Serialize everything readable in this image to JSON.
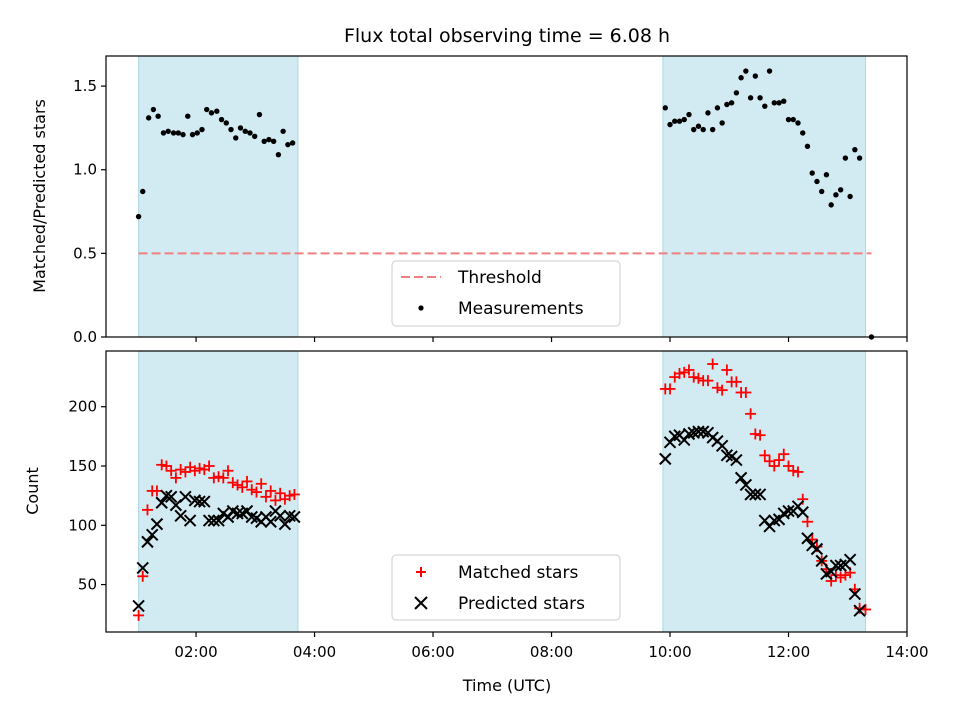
{
  "chart_data": {
    "type": "scatter",
    "title": "Flux total observing time = 6.08 h",
    "xlabel": "Time (UTC)",
    "x_tick_labels": [
      "02:00",
      "04:00",
      "06:00",
      "08:00",
      "10:00",
      "12:00",
      "14:00"
    ],
    "x_ticks_hours": [
      2,
      4,
      6,
      8,
      10,
      12,
      14
    ],
    "xlim_hours": [
      0.48,
      14.0
    ],
    "shaded_intervals_hours": [
      [
        1.03,
        3.72
      ],
      [
        9.88,
        13.3
      ]
    ],
    "colors": {
      "shade": "#add8e6",
      "threshold": "#f08080",
      "measurements": "#000000",
      "matched": "#ff0000",
      "predicted": "#000000"
    },
    "panels": [
      {
        "ylabel": "Matched/Predicted stars",
        "ylim": [
          0,
          1.68
        ],
        "y_ticks": [
          0,
          0.5,
          1.0,
          1.5
        ],
        "y_tick_labels": [
          "0.0",
          "0.5",
          "1.0",
          "1.5"
        ],
        "threshold": {
          "name": "Threshold",
          "value": 0.5,
          "x_range_hours": [
            1.03,
            13.4
          ]
        },
        "series": [
          {
            "name": "Measurements",
            "marker": "dot",
            "points": [
              [
                1.03,
                0.72
              ],
              [
                1.1,
                0.87
              ],
              [
                1.2,
                1.31
              ],
              [
                1.28,
                1.36
              ],
              [
                1.36,
                1.32
              ],
              [
                1.45,
                1.22
              ],
              [
                1.53,
                1.23
              ],
              [
                1.62,
                1.22
              ],
              [
                1.7,
                1.22
              ],
              [
                1.78,
                1.21
              ],
              [
                1.86,
                1.32
              ],
              [
                1.94,
                1.21
              ],
              [
                2.02,
                1.22
              ],
              [
                2.1,
                1.24
              ],
              [
                2.18,
                1.36
              ],
              [
                2.26,
                1.34
              ],
              [
                2.35,
                1.35
              ],
              [
                2.43,
                1.3
              ],
              [
                2.51,
                1.28
              ],
              [
                2.59,
                1.24
              ],
              [
                2.67,
                1.19
              ],
              [
                2.75,
                1.25
              ],
              [
                2.83,
                1.23
              ],
              [
                2.91,
                1.22
              ],
              [
                2.99,
                1.2
              ],
              [
                3.07,
                1.33
              ],
              [
                3.15,
                1.17
              ],
              [
                3.23,
                1.18
              ],
              [
                3.31,
                1.17
              ],
              [
                3.39,
                1.09
              ],
              [
                3.47,
                1.23
              ],
              [
                3.55,
                1.15
              ],
              [
                3.63,
                1.16
              ],
              [
                9.92,
                1.37
              ],
              [
                10.0,
                1.27
              ],
              [
                10.08,
                1.29
              ],
              [
                10.16,
                1.29
              ],
              [
                10.24,
                1.3
              ],
              [
                10.32,
                1.33
              ],
              [
                10.4,
                1.24
              ],
              [
                10.48,
                1.26
              ],
              [
                10.56,
                1.24
              ],
              [
                10.64,
                1.34
              ],
              [
                10.72,
                1.24
              ],
              [
                10.8,
                1.37
              ],
              [
                10.88,
                1.28
              ],
              [
                10.96,
                1.39
              ],
              [
                11.04,
                1.4
              ],
              [
                11.12,
                1.46
              ],
              [
                11.2,
                1.55
              ],
              [
                11.28,
                1.59
              ],
              [
                11.36,
                1.43
              ],
              [
                11.44,
                1.56
              ],
              [
                11.52,
                1.43
              ],
              [
                11.6,
                1.38
              ],
              [
                11.68,
                1.59
              ],
              [
                11.76,
                1.4
              ],
              [
                11.84,
                1.4
              ],
              [
                11.92,
                1.41
              ],
              [
                12.0,
                1.3
              ],
              [
                12.08,
                1.3
              ],
              [
                12.16,
                1.28
              ],
              [
                12.24,
                1.22
              ],
              [
                12.32,
                1.14
              ],
              [
                12.4,
                0.98
              ],
              [
                12.48,
                0.93
              ],
              [
                12.56,
                0.87
              ],
              [
                12.64,
                0.97
              ],
              [
                12.72,
                0.79
              ],
              [
                12.8,
                0.85
              ],
              [
                12.88,
                0.88
              ],
              [
                12.96,
                1.07
              ],
              [
                13.04,
                0.84
              ],
              [
                13.12,
                1.12
              ],
              [
                13.2,
                1.07
              ],
              [
                13.4,
                0.0
              ]
            ]
          }
        ],
        "legend": {
          "placement": "lower-center",
          "entries": [
            "Threshold",
            "Measurements"
          ]
        }
      },
      {
        "ylabel": "Count",
        "ylim": [
          10,
          247
        ],
        "y_ticks": [
          50,
          100,
          150,
          200
        ],
        "y_tick_labels": [
          "50",
          "100",
          "150",
          "200"
        ],
        "series": [
          {
            "name": "Matched stars",
            "marker": "plus",
            "points": [
              [
                1.03,
                24
              ],
              [
                1.1,
                57
              ],
              [
                1.18,
                113
              ],
              [
                1.26,
                129
              ],
              [
                1.34,
                129
              ],
              [
                1.42,
                151
              ],
              [
                1.5,
                150
              ],
              [
                1.58,
                146
              ],
              [
                1.66,
                140
              ],
              [
                1.74,
                147
              ],
              [
                1.82,
                145
              ],
              [
                1.9,
                149
              ],
              [
                1.98,
                146
              ],
              [
                2.06,
                148
              ],
              [
                2.14,
                147
              ],
              [
                2.22,
                150
              ],
              [
                2.3,
                140
              ],
              [
                2.38,
                141
              ],
              [
                2.46,
                140
              ],
              [
                2.54,
                146
              ],
              [
                2.62,
                136
              ],
              [
                2.7,
                134
              ],
              [
                2.78,
                132
              ],
              [
                2.86,
                137
              ],
              [
                2.94,
                130
              ],
              [
                3.02,
                128
              ],
              [
                3.1,
                135
              ],
              [
                3.18,
                124
              ],
              [
                3.26,
                129
              ],
              [
                3.34,
                121
              ],
              [
                3.42,
                127
              ],
              [
                3.5,
                122
              ],
              [
                3.58,
                125
              ],
              [
                3.66,
                126
              ],
              [
                9.92,
                215
              ],
              [
                10.0,
                215
              ],
              [
                10.08,
                225
              ],
              [
                10.16,
                228
              ],
              [
                10.24,
                229
              ],
              [
                10.32,
                231
              ],
              [
                10.4,
                225
              ],
              [
                10.48,
                224
              ],
              [
                10.56,
                222
              ],
              [
                10.64,
                222
              ],
              [
                10.72,
                236
              ],
              [
                10.8,
                216
              ],
              [
                10.88,
                214
              ],
              [
                10.96,
                231
              ],
              [
                11.04,
                221
              ],
              [
                11.12,
                221
              ],
              [
                11.2,
                212
              ],
              [
                11.28,
                212
              ],
              [
                11.36,
                194
              ],
              [
                11.44,
                177
              ],
              [
                11.52,
                176
              ],
              [
                11.6,
                159
              ],
              [
                11.68,
                154
              ],
              [
                11.76,
                150
              ],
              [
                11.84,
                155
              ],
              [
                11.92,
                160
              ],
              [
                12.0,
                150
              ],
              [
                12.08,
                146
              ],
              [
                12.16,
                145
              ],
              [
                12.24,
                122
              ],
              [
                12.32,
                103
              ],
              [
                12.4,
                88
              ],
              [
                12.48,
                82
              ],
              [
                12.56,
                70
              ],
              [
                12.64,
                63
              ],
              [
                12.72,
                53
              ],
              [
                12.8,
                58
              ],
              [
                12.88,
                56
              ],
              [
                12.96,
                58
              ],
              [
                13.04,
                60
              ],
              [
                13.12,
                46
              ],
              [
                13.2,
                30
              ],
              [
                13.3,
                29
              ]
            ]
          },
          {
            "name": "Predicted stars",
            "marker": "x",
            "points": [
              [
                1.03,
                32
              ],
              [
                1.1,
                64
              ],
              [
                1.18,
                86
              ],
              [
                1.26,
                92
              ],
              [
                1.34,
                101
              ],
              [
                1.42,
                119
              ],
              [
                1.5,
                125
              ],
              [
                1.58,
                124
              ],
              [
                1.66,
                117
              ],
              [
                1.74,
                108
              ],
              [
                1.82,
                124
              ],
              [
                1.9,
                104
              ],
              [
                1.98,
                121
              ],
              [
                2.06,
                120
              ],
              [
                2.14,
                120
              ],
              [
                2.22,
                104
              ],
              [
                2.3,
                104
              ],
              [
                2.38,
                104
              ],
              [
                2.46,
                110
              ],
              [
                2.54,
                107
              ],
              [
                2.62,
                112
              ],
              [
                2.7,
                110
              ],
              [
                2.78,
                110
              ],
              [
                2.86,
                112
              ],
              [
                2.94,
                107
              ],
              [
                3.02,
                106
              ],
              [
                3.1,
                103
              ],
              [
                3.18,
                107
              ],
              [
                3.26,
                103
              ],
              [
                3.34,
                112
              ],
              [
                3.42,
                108
              ],
              [
                3.5,
                101
              ],
              [
                3.58,
                108
              ],
              [
                3.66,
                107
              ],
              [
                9.92,
                156
              ],
              [
                10.0,
                170
              ],
              [
                10.08,
                175
              ],
              [
                10.16,
                176
              ],
              [
                10.24,
                172
              ],
              [
                10.32,
                177
              ],
              [
                10.4,
                178
              ],
              [
                10.48,
                179
              ],
              [
                10.56,
                179
              ],
              [
                10.64,
                178
              ],
              [
                10.72,
                174
              ],
              [
                10.8,
                171
              ],
              [
                10.88,
                167
              ],
              [
                10.96,
                159
              ],
              [
                11.04,
                158
              ],
              [
                11.12,
                155
              ],
              [
                11.2,
                140
              ],
              [
                11.28,
                134
              ],
              [
                11.36,
                126
              ],
              [
                11.44,
                126
              ],
              [
                11.52,
                126
              ],
              [
                11.6,
                104
              ],
              [
                11.68,
                99
              ],
              [
                11.76,
                104
              ],
              [
                11.84,
                105
              ],
              [
                11.92,
                110
              ],
              [
                12.0,
                112
              ],
              [
                12.08,
                112
              ],
              [
                12.16,
                116
              ],
              [
                12.24,
                111
              ],
              [
                12.32,
                89
              ],
              [
                12.4,
                83
              ],
              [
                12.48,
                80
              ],
              [
                12.56,
                70
              ],
              [
                12.64,
                59
              ],
              [
                12.72,
                61
              ],
              [
                12.8,
                66
              ],
              [
                12.88,
                66
              ],
              [
                12.96,
                67
              ],
              [
                13.04,
                71
              ],
              [
                13.12,
                42
              ],
              [
                13.2,
                28
              ]
            ]
          }
        ],
        "legend": {
          "placement": "lower-center",
          "entries": [
            "Matched stars",
            "Predicted stars"
          ]
        }
      }
    ]
  }
}
